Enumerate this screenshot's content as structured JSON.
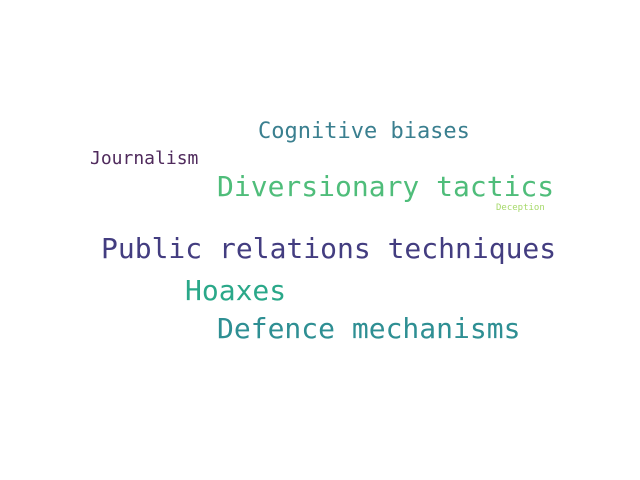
{
  "words": [
    {
      "text": "Cognitive biases",
      "color": "#3a7f8f"
    },
    {
      "text": "Journalism",
      "color": "#4f2a5c"
    },
    {
      "text": "Diversionary tactics",
      "color": "#4fbd7a"
    },
    {
      "text": "Deception",
      "color": "#a6d96a"
    },
    {
      "text": "Public relations techniques",
      "color": "#433d80"
    },
    {
      "text": "Hoaxes",
      "color": "#2aa889"
    },
    {
      "text": "Defence mechanisms",
      "color": "#2e8f93"
    }
  ]
}
